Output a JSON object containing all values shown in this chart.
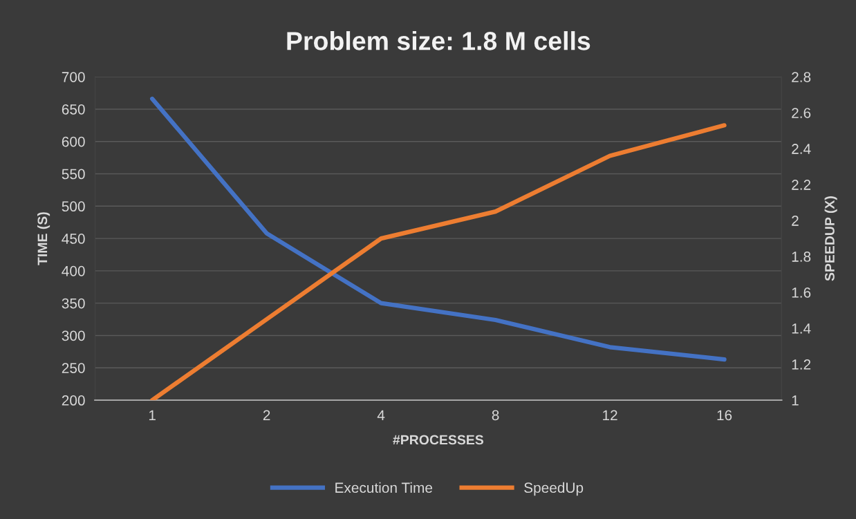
{
  "chart_data": {
    "type": "line",
    "title": "Problem size: 1.8 M cells",
    "xlabel": "#PROCESSES",
    "ylabel": "TIME (S)",
    "y2label": "SPEEDUP (X)",
    "categories": [
      "1",
      "2",
      "4",
      "8",
      "12",
      "16"
    ],
    "series": [
      {
        "name": "Execution Time",
        "color": "#4472c4",
        "values": [
          666,
          458,
          350,
          324,
          282,
          263
        ]
      },
      {
        "name": "SpeedUp",
        "color": "#ed7d31",
        "axis": "y2",
        "values": [
          1.0,
          1.45,
          1.9,
          2.05,
          2.36,
          2.53
        ]
      }
    ],
    "ylim": [
      200,
      700
    ],
    "yticks": [
      200,
      250,
      300,
      350,
      400,
      450,
      500,
      550,
      600,
      650,
      700
    ],
    "y2lim": [
      1,
      2.8
    ],
    "y2ticks": [
      1,
      1.2,
      1.4,
      1.6,
      1.8,
      2,
      2.2,
      2.4,
      2.6,
      2.8
    ],
    "grid": "y",
    "legend": "bottom",
    "marker": "none",
    "line_style": "solid"
  }
}
